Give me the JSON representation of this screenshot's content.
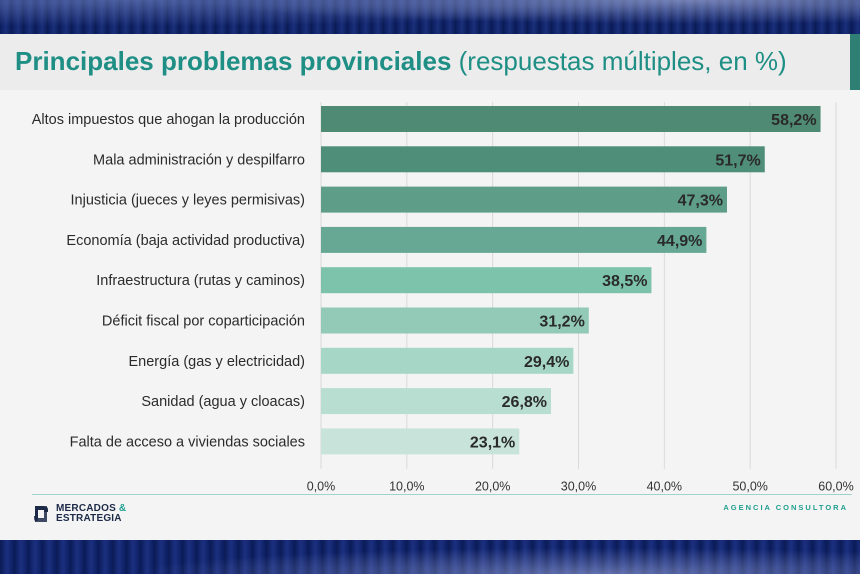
{
  "header": {
    "title_main": "Principales problemas provinciales",
    "title_sub": "(respuestas múltiples, en %)"
  },
  "footer": {
    "logo_line1": "MERCADOS",
    "logo_amp": "&",
    "logo_line2": "ESTRATEGIA",
    "agency": "AGENCIA CONSULTORA"
  },
  "chart_data": {
    "type": "bar",
    "orientation": "horizontal",
    "categories": [
      "Altos impuestos que ahogan la producción",
      "Mala administración y despilfarro",
      "Injusticia (jueces y leyes permisivas)",
      "Economía (baja actividad productiva)",
      "Infraestructura (rutas y caminos)",
      "Déficit fiscal por coparticipación",
      "Energía (gas y electricidad)",
      "Sanidad (agua y cloacas)",
      "Falta de acceso a viviendas sociales"
    ],
    "values": [
      58.2,
      51.7,
      47.3,
      44.9,
      38.5,
      31.2,
      29.4,
      26.8,
      23.1
    ],
    "value_labels": [
      "58,2%",
      "51,7%",
      "47,3%",
      "44,9%",
      "38,5%",
      "31,2%",
      "29,4%",
      "26,8%",
      "23,1%"
    ],
    "xlim": [
      0,
      60
    ],
    "x_ticks": [
      "0,0%",
      "10,0%",
      "20,0%",
      "30,0%",
      "40,0%",
      "50,0%",
      "60,0%"
    ],
    "colors": [
      "#4f8a75",
      "#4f8e79",
      "#5e9e88",
      "#66a894",
      "#7dc3ac",
      "#92c9b7",
      "#a6d6c6",
      "#b8ddd1",
      "#c8e4da"
    ],
    "grid": true
  }
}
